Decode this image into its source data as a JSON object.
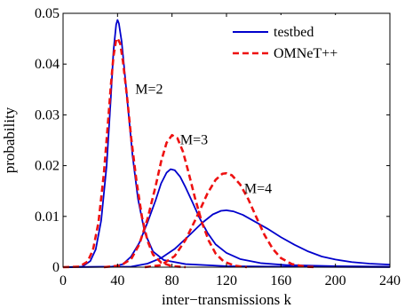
{
  "chart_data": {
    "type": "line",
    "title": "",
    "xlabel": "inter−transmissions k",
    "ylabel": "probability",
    "xlim": [
      0,
      240
    ],
    "ylim": [
      0,
      0.05
    ],
    "xticks": [
      0,
      40,
      80,
      120,
      160,
      200,
      240
    ],
    "xtick_labels": [
      "0",
      "40",
      "80",
      "120",
      "160",
      "200",
      "240"
    ],
    "yticks": [
      0,
      0.01,
      0.02,
      0.03,
      0.04,
      0.05
    ],
    "ytick_labels": [
      "0",
      "0.01",
      "0.02",
      "0.03",
      "0.04",
      "0.05"
    ],
    "grid": false,
    "legend_position": "top-right",
    "legend": [
      {
        "label": "testbed",
        "color": "#0000cc",
        "style": "solid"
      },
      {
        "label": "OMNeT++",
        "color": "#ee1111",
        "style": "dashed"
      }
    ],
    "annotations": [
      {
        "text": "M=2",
        "x": 53,
        "y": 0.0342
      },
      {
        "text": "M=3",
        "x": 86,
        "y": 0.0242
      },
      {
        "text": "M=4",
        "x": 133,
        "y": 0.0146
      }
    ],
    "series": [
      {
        "group": "testbed",
        "M": 2,
        "color": "#0000cc",
        "style": "solid",
        "points": [
          [
            0,
            0
          ],
          [
            14,
            0.0001
          ],
          [
            20,
            0.0012
          ],
          [
            24,
            0.0035
          ],
          [
            28,
            0.0092
          ],
          [
            32,
            0.02
          ],
          [
            35,
            0.033
          ],
          [
            37,
            0.0425
          ],
          [
            39,
            0.0478
          ],
          [
            40,
            0.0487
          ],
          [
            41,
            0.048
          ],
          [
            43,
            0.0445
          ],
          [
            45,
            0.039
          ],
          [
            48,
            0.0305
          ],
          [
            51,
            0.022
          ],
          [
            55,
            0.0135
          ],
          [
            60,
            0.0068
          ],
          [
            66,
            0.0031
          ],
          [
            74,
            0.0014
          ],
          [
            90,
            0.0006
          ],
          [
            120,
            0.0002
          ],
          [
            160,
            0.0001
          ],
          [
            240,
            0
          ]
        ]
      },
      {
        "group": "testbed",
        "M": 3,
        "color": "#0000cc",
        "style": "solid",
        "points": [
          [
            0,
            0
          ],
          [
            36,
            0.0001
          ],
          [
            44,
            0.0006
          ],
          [
            50,
            0.0021
          ],
          [
            56,
            0.0048
          ],
          [
            62,
            0.0088
          ],
          [
            68,
            0.0132
          ],
          [
            72,
            0.0165
          ],
          [
            76,
            0.0186
          ],
          [
            79,
            0.0193
          ],
          [
            82,
            0.0191
          ],
          [
            86,
            0.0178
          ],
          [
            90,
            0.0157
          ],
          [
            95,
            0.0128
          ],
          [
            100,
            0.0098
          ],
          [
            106,
            0.0068
          ],
          [
            112,
            0.0045
          ],
          [
            120,
            0.0028
          ],
          [
            130,
            0.0016
          ],
          [
            145,
            0.0008
          ],
          [
            165,
            0.0004
          ],
          [
            200,
            0.0002
          ],
          [
            240,
            0.0001
          ]
        ]
      },
      {
        "group": "testbed",
        "M": 4,
        "color": "#0000cc",
        "style": "solid",
        "points": [
          [
            0,
            0
          ],
          [
            50,
            0.0001
          ],
          [
            62,
            0.0007
          ],
          [
            72,
            0.0018
          ],
          [
            82,
            0.0036
          ],
          [
            92,
            0.0061
          ],
          [
            102,
            0.0087
          ],
          [
            110,
            0.0104
          ],
          [
            116,
            0.0111
          ],
          [
            120,
            0.0112
          ],
          [
            125,
            0.011
          ],
          [
            132,
            0.0103
          ],
          [
            140,
            0.0091
          ],
          [
            150,
            0.0076
          ],
          [
            160,
            0.0059
          ],
          [
            170,
            0.0044
          ],
          [
            180,
            0.0031
          ],
          [
            190,
            0.0021
          ],
          [
            200,
            0.0015
          ],
          [
            212,
            0.001
          ],
          [
            225,
            0.0007
          ],
          [
            240,
            0.0005
          ]
        ]
      },
      {
        "group": "OMNeT++",
        "M": 2,
        "color": "#ee1111",
        "style": "dashed",
        "points": [
          [
            0,
            0
          ],
          [
            12,
            0.0001
          ],
          [
            18,
            0.0011
          ],
          [
            22,
            0.0034
          ],
          [
            26,
            0.0088
          ],
          [
            30,
            0.0185
          ],
          [
            33,
            0.0285
          ],
          [
            35,
            0.0355
          ],
          [
            37,
            0.0415
          ],
          [
            39,
            0.0448
          ],
          [
            40,
            0.0451
          ],
          [
            42,
            0.044
          ],
          [
            44,
            0.0405
          ],
          [
            47,
            0.0335
          ],
          [
            50,
            0.0255
          ],
          [
            54,
            0.0168
          ],
          [
            58,
            0.0098
          ],
          [
            62,
            0.0052
          ],
          [
            66,
            0.0025
          ],
          [
            72,
            0.0009
          ],
          [
            80,
            0.0002
          ],
          [
            90,
            0
          ]
        ]
      },
      {
        "group": "OMNeT++",
        "M": 3,
        "color": "#ee1111",
        "style": "dashed",
        "points": [
          [
            30,
            0
          ],
          [
            42,
            0.0003
          ],
          [
            50,
            0.0016
          ],
          [
            56,
            0.0045
          ],
          [
            62,
            0.0095
          ],
          [
            68,
            0.016
          ],
          [
            72,
            0.0208
          ],
          [
            76,
            0.0245
          ],
          [
            80,
            0.026
          ],
          [
            84,
            0.0254
          ],
          [
            88,
            0.0228
          ],
          [
            92,
            0.0188
          ],
          [
            97,
            0.0135
          ],
          [
            102,
            0.0088
          ],
          [
            107,
            0.0052
          ],
          [
            112,
            0.0027
          ],
          [
            118,
            0.0011
          ],
          [
            126,
            0.0003
          ],
          [
            135,
            0
          ]
        ]
      },
      {
        "group": "OMNeT++",
        "M": 4,
        "color": "#ee1111",
        "style": "dashed",
        "points": [
          [
            60,
            0
          ],
          [
            72,
            0.0004
          ],
          [
            82,
            0.0022
          ],
          [
            90,
            0.0054
          ],
          [
            98,
            0.0098
          ],
          [
            106,
            0.0145
          ],
          [
            112,
            0.0172
          ],
          [
            117,
            0.0184
          ],
          [
            120,
            0.0185
          ],
          [
            124,
            0.0181
          ],
          [
            130,
            0.0163
          ],
          [
            136,
            0.0134
          ],
          [
            142,
            0.0098
          ],
          [
            148,
            0.0063
          ],
          [
            154,
            0.0036
          ],
          [
            160,
            0.0018
          ],
          [
            168,
            0.0006
          ],
          [
            178,
            0.0001
          ],
          [
            186,
            0
          ]
        ]
      }
    ]
  }
}
